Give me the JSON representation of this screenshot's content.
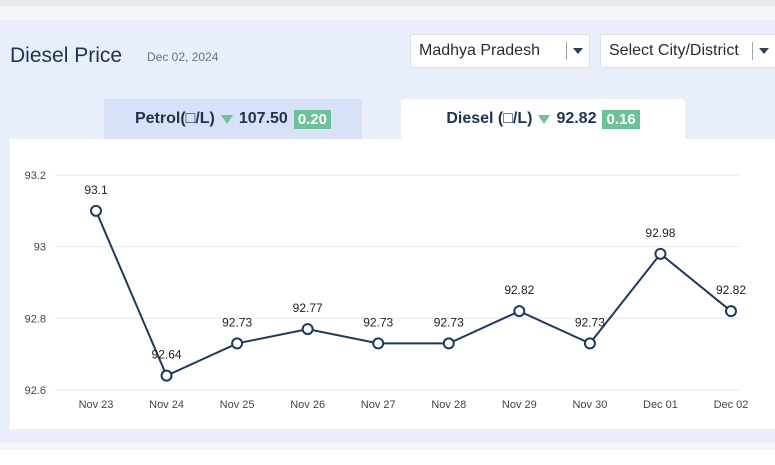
{
  "header": {
    "title": "Diesel Price",
    "date": "Dec 02, 2024"
  },
  "filters": {
    "state": "Madhya Pradesh",
    "city": "Select City/District"
  },
  "tabs": {
    "petrol": {
      "label": "Petrol(□/L)",
      "price": "107.50",
      "change": "0.20"
    },
    "diesel": {
      "label": "Diesel (□/L)",
      "price": "92.82",
      "change": "0.16"
    }
  },
  "colors": {
    "line": "#1e3a5f",
    "down": "#6cc19a",
    "grid": "#e3e6ec"
  },
  "chart_data": {
    "type": "line",
    "categories": [
      "Nov 23",
      "Nov 24",
      "Nov 25",
      "Nov 26",
      "Nov 27",
      "Nov 28",
      "Nov 29",
      "Nov 30",
      "Dec 01",
      "Dec 02"
    ],
    "series": [
      {
        "values": [
          93.1,
          92.64,
          92.73,
          92.77,
          92.73,
          92.73,
          92.82,
          92.73,
          92.98,
          92.82
        ]
      }
    ],
    "data_labels": [
      "93.1",
      "92.64",
      "92.73",
      "92.77",
      "92.73",
      "92.73",
      "92.82",
      "92.73",
      "92.98",
      "92.82"
    ],
    "y_ticks": [
      92.6,
      92.8,
      93,
      93.2
    ],
    "y_tick_labels": [
      "92.6",
      "92.8",
      "93",
      "93.2"
    ],
    "ylim": [
      92.6,
      93.2
    ],
    "grid": true,
    "legend": "none"
  }
}
